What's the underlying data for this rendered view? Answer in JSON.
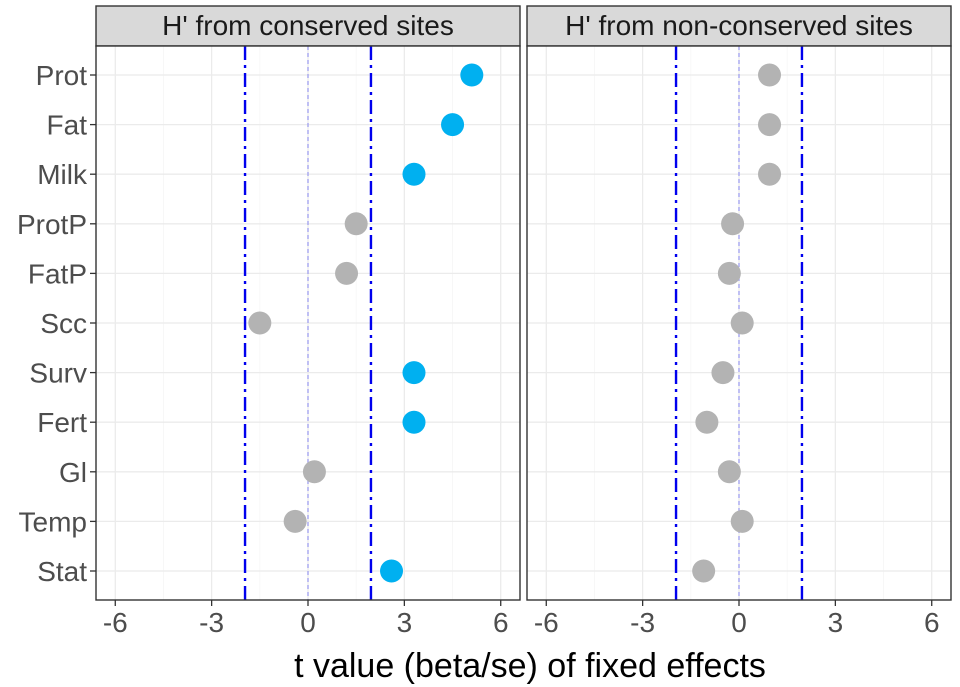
{
  "chart_data": {
    "type": "scatter",
    "xlabel": "t value (beta/se) of fixed effects",
    "ylabel": "",
    "xlim": [
      -6.6,
      6.6
    ],
    "xticks": [
      -6,
      -3,
      0,
      3,
      6
    ],
    "xtick_labels": [
      "-6",
      "-3",
      "0",
      "3",
      "6"
    ],
    "categories": [
      "Prot",
      "Fat",
      "Milk",
      "ProtP",
      "FatP",
      "Scc",
      "Surv",
      "Fert",
      "Gl",
      "Temp",
      "Stat"
    ],
    "threshold_lines": [
      -1.96,
      1.96
    ],
    "zero_line": 0,
    "grid": true,
    "colors": {
      "significant": "#00b0f0",
      "not_significant": "#b3b3b3",
      "threshold_line": "#0000ee",
      "zero_line": "#a0a0f0"
    },
    "panels": [
      {
        "title": "H' from conserved sites",
        "values": [
          5.1,
          4.5,
          3.3,
          1.5,
          1.2,
          -1.5,
          3.3,
          3.3,
          0.2,
          -0.4,
          2.6
        ],
        "significant": [
          true,
          true,
          true,
          false,
          false,
          false,
          true,
          true,
          false,
          false,
          true
        ]
      },
      {
        "title": "H' from non-conserved sites",
        "values": [
          0.95,
          0.95,
          0.95,
          -0.2,
          -0.3,
          0.1,
          -0.5,
          -1.0,
          -0.3,
          0.1,
          -1.1
        ],
        "significant": [
          false,
          false,
          false,
          false,
          false,
          false,
          false,
          false,
          false,
          false,
          false
        ]
      }
    ]
  }
}
